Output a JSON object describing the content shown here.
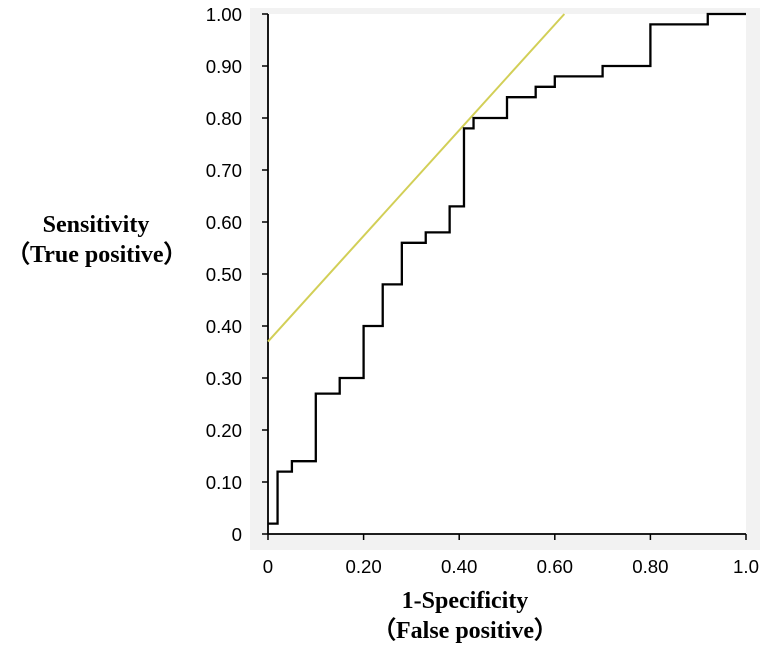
{
  "chart": {
    "type": "roc-step-line",
    "xlabel_line1": "1-Specificity",
    "xlabel_line2": "（False positive）",
    "ylabel_line1": "Sensitivity",
    "ylabel_line2": "（True positive）",
    "label_fontsize_pt": 18,
    "tick_fontsize_pt": 14,
    "background_color": "#ffffff",
    "plot_bg_color": "#ffffff",
    "panel_bg_color": "#f2f2f2",
    "axis_color": "#000000",
    "roc_line_color": "#000000",
    "roc_line_width": 2.3,
    "ref_line_color": "#d2cf57",
    "ref_line_width": 2.0,
    "xlim": [
      0.0,
      1.0
    ],
    "ylim": [
      0.0,
      1.0
    ],
    "xtick_step": 0.2,
    "ytick_step": 0.1,
    "x_ticks": [
      "0",
      "0.20",
      "0.40",
      "0.60",
      "0.80",
      "1.0"
    ],
    "y_ticks": [
      "0",
      "0.10",
      "0.20",
      "0.30",
      "0.40",
      "0.50",
      "0.60",
      "0.70",
      "0.80",
      "0.90",
      "1.00"
    ],
    "ref_line": {
      "x1": 0.0,
      "y1": 0.37,
      "x2": 0.62,
      "y2": 1.0
    },
    "roc_points": [
      [
        0.0,
        0.02
      ],
      [
        0.02,
        0.02
      ],
      [
        0.02,
        0.12
      ],
      [
        0.05,
        0.12
      ],
      [
        0.05,
        0.14
      ],
      [
        0.1,
        0.14
      ],
      [
        0.1,
        0.27
      ],
      [
        0.15,
        0.27
      ],
      [
        0.15,
        0.3
      ],
      [
        0.2,
        0.3
      ],
      [
        0.2,
        0.4
      ],
      [
        0.24,
        0.4
      ],
      [
        0.24,
        0.48
      ],
      [
        0.28,
        0.48
      ],
      [
        0.28,
        0.56
      ],
      [
        0.33,
        0.56
      ],
      [
        0.33,
        0.58
      ],
      [
        0.38,
        0.58
      ],
      [
        0.38,
        0.63
      ],
      [
        0.41,
        0.63
      ],
      [
        0.41,
        0.78
      ],
      [
        0.43,
        0.78
      ],
      [
        0.43,
        0.8
      ],
      [
        0.5,
        0.8
      ],
      [
        0.5,
        0.84
      ],
      [
        0.56,
        0.84
      ],
      [
        0.56,
        0.86
      ],
      [
        0.6,
        0.86
      ],
      [
        0.6,
        0.88
      ],
      [
        0.7,
        0.88
      ],
      [
        0.7,
        0.9
      ],
      [
        0.8,
        0.9
      ],
      [
        0.8,
        0.98
      ],
      [
        0.92,
        0.98
      ],
      [
        0.92,
        1.0
      ],
      [
        1.0,
        1.0
      ]
    ]
  }
}
